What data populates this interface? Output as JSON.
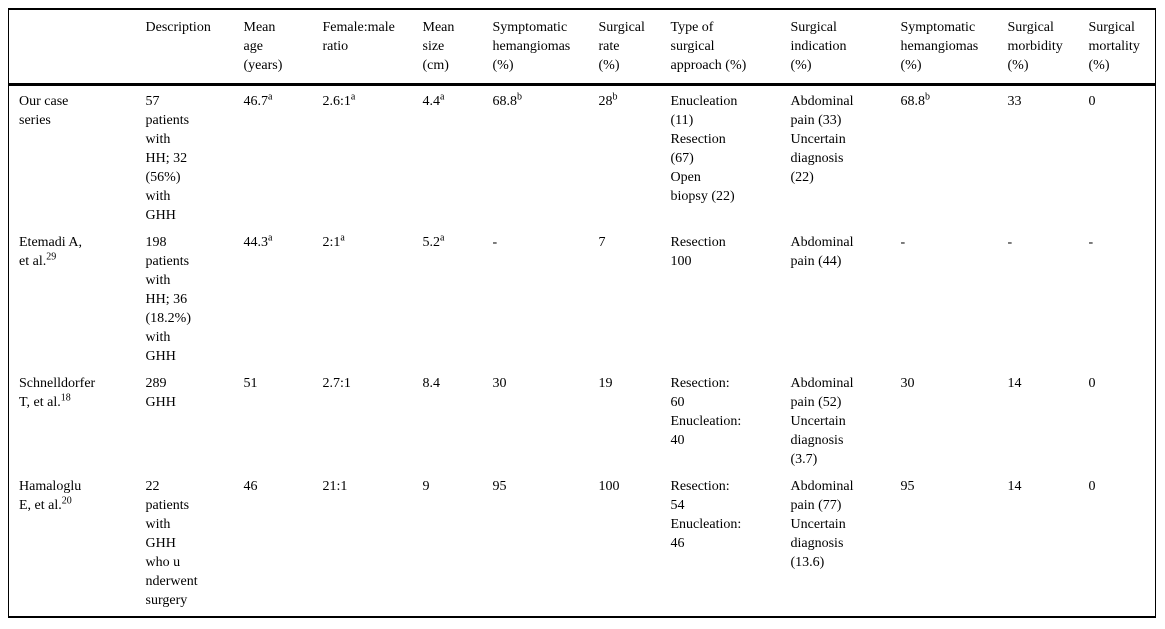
{
  "table": {
    "columns": [
      "",
      "Description",
      "Mean\nage\n(years)",
      "Female:male\nratio",
      "Mean\nsize\n(cm)",
      "Symptomatic\nhemangiomas\n(%)",
      "Surgical\nrate\n(%)",
      "Type of\nsurgical\napproach (%)",
      "Surgical\nindication\n(%)",
      "Symptomatic\nhemangiomas\n(%)",
      "Surgical\nmorbidity\n(%)",
      "Surgical\nmortality\n(%)"
    ],
    "rows": [
      {
        "cells": [
          "Our case\nseries",
          "57\npatients\nwith\nHH; 32\n(56%)\nwith\nGHH",
          "46.7^{a}",
          "2.6:1^{a}",
          "4.4^{a}",
          "68.8^{b}",
          "28^{b}",
          "Enucleation\n(11)\nResection\n(67)\nOpen\nbiopsy (22)",
          "Abdominal\npain (33)\nUncertain\ndiagnosis\n(22)",
          "68.8^{b}",
          "33",
          "0"
        ]
      },
      {
        "cells": [
          "Etemadi A,\net al.^{29}",
          "198\npatients\nwith\nHH; 36\n(18.2%)\nwith\nGHH",
          "44.3^{a}",
          "2:1^{a}",
          "5.2^{a}",
          "-",
          "7",
          "Resection\n100",
          "Abdominal\npain (44)",
          "-",
          "-",
          "-"
        ]
      },
      {
        "cells": [
          "Schnelldorfer\nT, et al.^{18}",
          "289\nGHH",
          "51",
          "2.7:1",
          "8.4",
          "30",
          "19",
          "Resection:\n60\nEnucleation:\n40",
          "Abdominal\npain (52)\nUncertain\ndiagnosis\n(3.7)",
          "30",
          "14",
          "0"
        ]
      },
      {
        "cells": [
          "Hamaloglu\nE, et al.^{20}",
          "22\npatients\nwith\nGHH\nwho u\nnderwent\nsurgery",
          "46",
          "21:1",
          "9",
          "95",
          "100",
          "Resection:\n54\nEnucleation:\n46",
          "Abdominal\npain (77)\nUncertain\ndiagnosis\n(13.6)",
          "95",
          "14",
          "0"
        ]
      }
    ]
  }
}
